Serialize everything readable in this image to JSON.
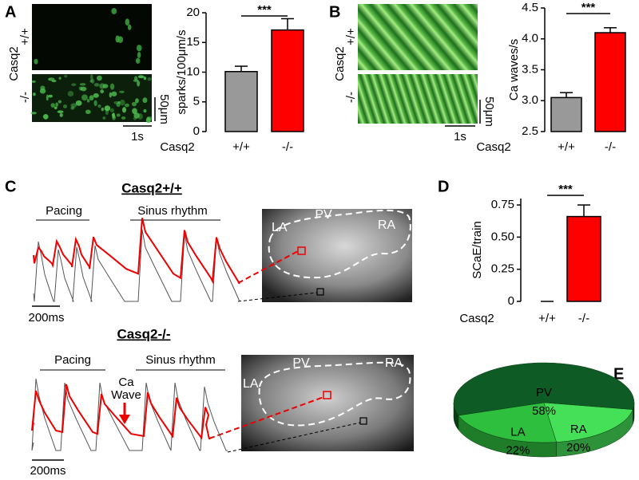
{
  "panel_labels": [
    "A",
    "B",
    "C",
    "D",
    "E"
  ],
  "panel_a_image": {
    "group_label": "Casq2",
    "rows": [
      "+/+",
      "-/-"
    ],
    "scale_y": "50μm",
    "scale_x": "1s"
  },
  "panel_b_image": {
    "group_label": "Casq2",
    "rows": [
      "+/+",
      "-/-"
    ],
    "scale_y": "50μm",
    "scale_x": "1s"
  },
  "panel_c": {
    "top": {
      "title": "Casq2+/+",
      "pacing": "Pacing",
      "sinus": "Sinus rhythm",
      "time_scale": "200ms",
      "regions": [
        "LA",
        "PV",
        "RA"
      ]
    },
    "bottom": {
      "title": "Casq2-/-",
      "pacing": "Pacing",
      "sinus": "Sinus rhythm",
      "time_scale": "200ms",
      "regions": [
        "LA",
        "PV",
        "RA"
      ],
      "annotation": [
        "Ca",
        "Wave"
      ]
    }
  },
  "chart_data": [
    {
      "type": "bar",
      "y_label": "sparks/100μm/s",
      "x_label": "Casq2",
      "categories": [
        "+/+",
        "-/-"
      ],
      "values": [
        10.1,
        17.1
      ],
      "errors": [
        0.9,
        1.9
      ],
      "colors": [
        "#999999",
        "#ff0000"
      ],
      "ylim": [
        0,
        20
      ],
      "yticks": [
        0,
        5,
        10,
        15,
        20
      ],
      "significance": "***"
    },
    {
      "type": "bar",
      "y_label": "Ca waves/s",
      "x_label": "Casq2",
      "categories": [
        "+/+",
        "-/-"
      ],
      "values": [
        3.05,
        4.1
      ],
      "errors": [
        0.08,
        0.08
      ],
      "colors": [
        "#999999",
        "#ff0000"
      ],
      "ylim": [
        2.5,
        4.5
      ],
      "yticks": [
        2.5,
        {
          "value": 3,
          "label": "3.0"
        },
        3.5,
        {
          "value": 4,
          "label": "4.0"
        },
        4.5
      ],
      "significance": "***"
    },
    {
      "type": "bar",
      "y_label": "SCaE/train",
      "x_label": "Casq2",
      "categories": [
        "+/+",
        "-/-"
      ],
      "values": [
        0,
        0.66
      ],
      "errors": [
        0,
        0.09
      ],
      "colors": [
        "#999999",
        "#ff0000"
      ],
      "ylim": [
        0,
        0.8
      ],
      "yticks": [
        0,
        0.25,
        {
          "value": 0.5,
          "label": "0.50"
        },
        0.75
      ],
      "significance": "***"
    },
    {
      "type": "pie",
      "labels": [
        "PV",
        "LA",
        "RA"
      ],
      "values": [
        58,
        22,
        20
      ],
      "value_labels": [
        "58%",
        "22%",
        "20%"
      ],
      "colors": [
        "#0e5b25",
        "#2fbf3f",
        "#45e057"
      ]
    }
  ]
}
